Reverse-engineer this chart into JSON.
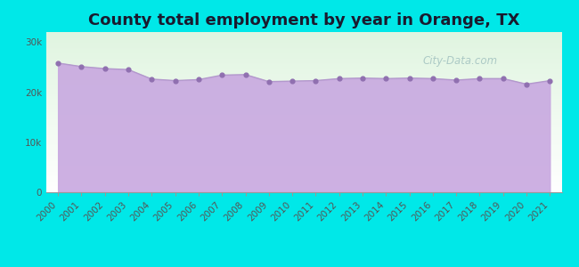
{
  "title": "County total employment by year in Orange, TX",
  "background_color": "#00e8e8",
  "line_color": "#b399cc",
  "fill_color": "#c8a8e0",
  "marker_color": "#9070b0",
  "years": [
    2000,
    2001,
    2002,
    2003,
    2004,
    2005,
    2006,
    2007,
    2008,
    2009,
    2010,
    2011,
    2012,
    2013,
    2014,
    2015,
    2016,
    2017,
    2018,
    2019,
    2020,
    2021
  ],
  "values": [
    25800,
    25100,
    24700,
    24500,
    22600,
    22300,
    22500,
    23400,
    23500,
    22100,
    22200,
    22300,
    22700,
    22800,
    22700,
    22800,
    22700,
    22400,
    22700,
    22700,
    21600,
    22300
  ],
  "ylim": [
    0,
    32000
  ],
  "yticks": [
    0,
    10000,
    20000,
    30000
  ],
  "ytick_labels": [
    "0",
    "10k",
    "20k",
    "30k"
  ],
  "watermark": "City-Data.com",
  "title_fontsize": 13,
  "tick_fontsize": 7.5
}
